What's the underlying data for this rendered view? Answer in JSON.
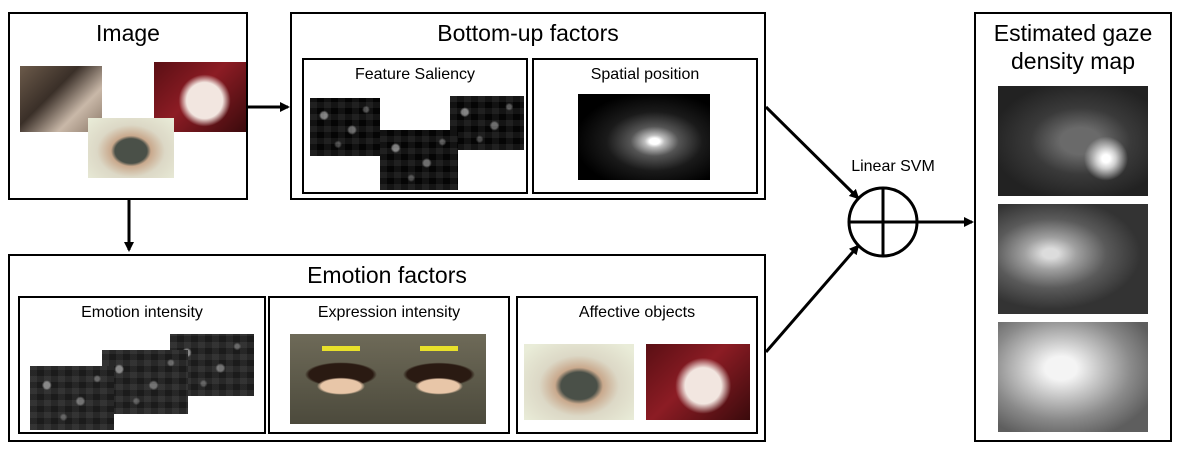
{
  "image_box": {
    "title": "Image"
  },
  "bottom_up": {
    "title": "Bottom-up factors",
    "feature_saliency": "Feature Saliency",
    "spatial_position": "Spatial position"
  },
  "emotion": {
    "title": "Emotion factors",
    "emotion_intensity": "Emotion intensity",
    "expression_intensity": "Expression intensity",
    "affective_objects": "Affective objects"
  },
  "combiner": {
    "label": "Linear SVM"
  },
  "output": {
    "title_line1": "Estimated gaze",
    "title_line2": "density map"
  },
  "colors": {
    "stroke": "#000000",
    "face_box": "#e8e02a"
  }
}
